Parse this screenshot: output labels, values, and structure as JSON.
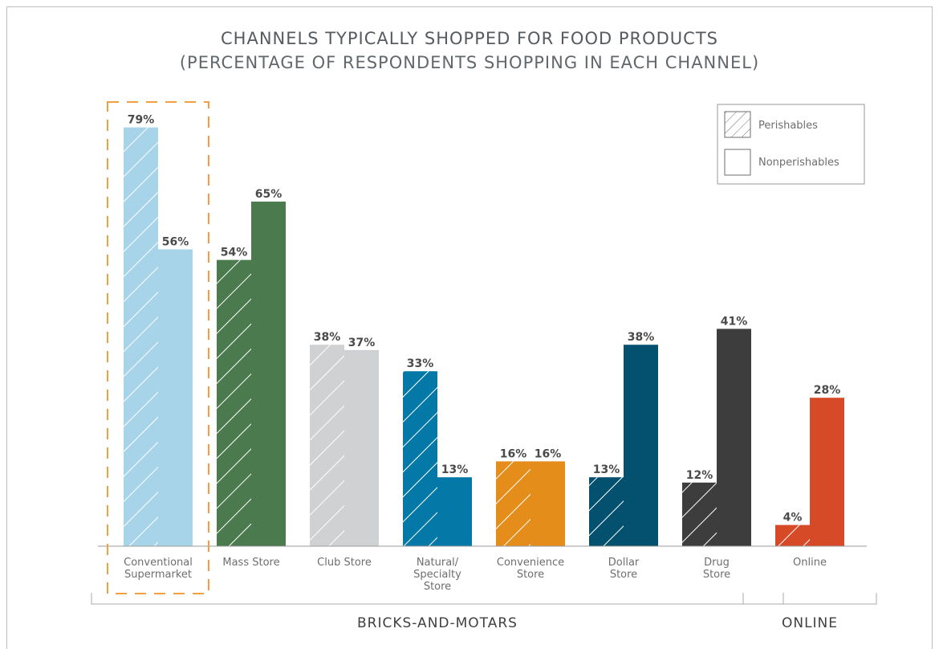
{
  "chart_data": {
    "type": "bar",
    "title": "CHANNELS TYPICALLY SHOPPED FOR FOOD PRODUCTS",
    "subtitle": "(PERCENTAGE OF RESPONDENTS SHOPPING IN EACH CHANNEL)",
    "categories": [
      [
        "Conventional",
        "Supermarket"
      ],
      [
        "Mass Store"
      ],
      [
        "Club Store"
      ],
      [
        "Natural/",
        "Specialty",
        "Store"
      ],
      [
        "Convenience",
        "Store"
      ],
      [
        "Dollar",
        "Store"
      ],
      [
        "Drug",
        "Store"
      ],
      [
        "Online"
      ]
    ],
    "series": [
      {
        "name": "Perishables",
        "pattern": "hatched",
        "values": [
          79,
          54,
          38,
          33,
          16,
          13,
          12,
          4
        ]
      },
      {
        "name": "Nonperishables",
        "pattern": "solid",
        "values": [
          56,
          65,
          37,
          13,
          16,
          38,
          41,
          28
        ]
      }
    ],
    "value_labels": {
      "perishables": [
        "79%",
        "54%",
        "38%",
        "33%",
        "16%",
        "13%",
        "12%",
        "4%"
      ],
      "nonperishables": [
        "56%",
        "65%",
        "37%",
        "13%",
        "16%",
        "38%",
        "41%",
        "28%"
      ]
    },
    "colors": [
      "#a8d4ea",
      "#4a7a4e",
      "#d0d1d3",
      "#0478a6",
      "#e48d1a",
      "#03506f",
      "#3d3d3d",
      "#d64a27"
    ],
    "highlight_color": "#f0a040",
    "highlighted_category_index": 0,
    "groups": [
      {
        "label": "BRICKS-AND-MOTARS",
        "first": 0,
        "last": 6
      },
      {
        "label": "ONLINE",
        "first": 7,
        "last": 7
      }
    ],
    "legend": {
      "position": "top-right",
      "items": [
        "Perishables",
        "Nonperishables"
      ]
    },
    "ylim": [
      0,
      100
    ],
    "grid": false,
    "xlabel": "",
    "ylabel": ""
  }
}
